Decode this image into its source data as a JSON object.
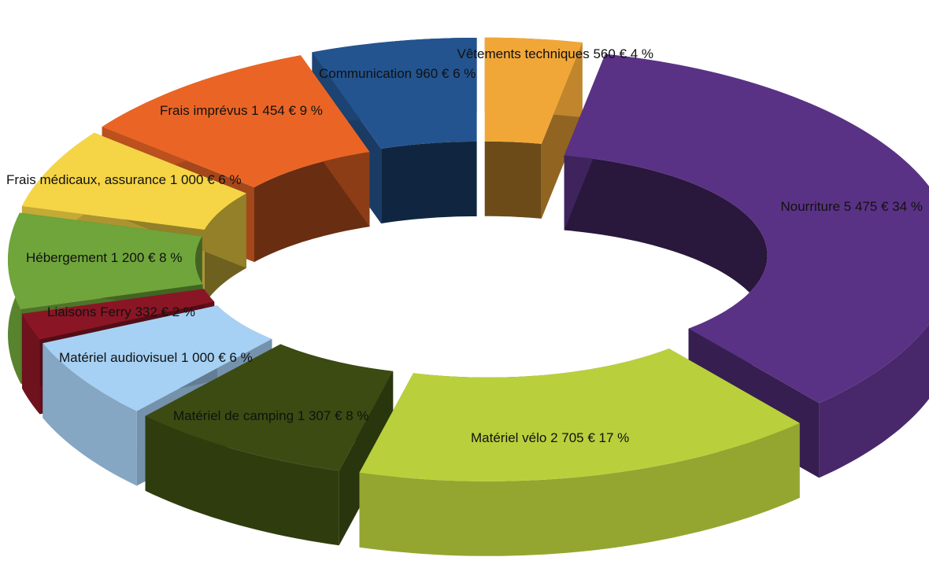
{
  "chart_data": {
    "type": "pie",
    "variant": "3d-exploded-donut",
    "title": "",
    "start_category": "Vêtements techniques",
    "categories": [
      {
        "name": "Vêtements techniques",
        "value": 560,
        "percent": 4,
        "label": "Vêtements techniques 560 € 4 %",
        "color": "#f1a738"
      },
      {
        "name": "Nourriture",
        "value": 5475,
        "percent": 34,
        "label": "Nourriture 5 475 € 34 %",
        "color": "#5a3285"
      },
      {
        "name": "Matériel vélo",
        "value": 2705,
        "percent": 17,
        "label": "Matériel vélo 2 705 € 17 %",
        "color": "#b9d03c"
      },
      {
        "name": "Matériel de camping",
        "value": 1307,
        "percent": 8,
        "label": "Matériel de camping 1 307 € 8 %",
        "color": "#3b4b12"
      },
      {
        "name": "Matériel audiovisuel",
        "value": 1000,
        "percent": 6,
        "label": "Matériel audiovisuel 1 000 € 6 %",
        "color": "#a6d1f4"
      },
      {
        "name": "Liaisons Ferry",
        "value": 332,
        "percent": 2,
        "label": "Liaisons Ferry 332 € 2 %",
        "color": "#8a1625"
      },
      {
        "name": "Hébergement",
        "value": 1200,
        "percent": 8,
        "label": "Hébergement 1 200 € 8 %",
        "color": "#6fa53a"
      },
      {
        "name": "Frais médicaux, assurance",
        "value": 1000,
        "percent": 6,
        "label": "Frais médicaux, assurance 1 000 € 6 %",
        "color": "#f5d545"
      },
      {
        "name": "Frais imprévus",
        "value": 1454,
        "percent": 9,
        "label": "Frais imprévus 1 454 € 9 %",
        "color": "#ea6525"
      },
      {
        "name": "Communication",
        "value": 960,
        "percent": 6,
        "label": "Communication 960 € 6 %",
        "color": "#23548f"
      }
    ]
  }
}
